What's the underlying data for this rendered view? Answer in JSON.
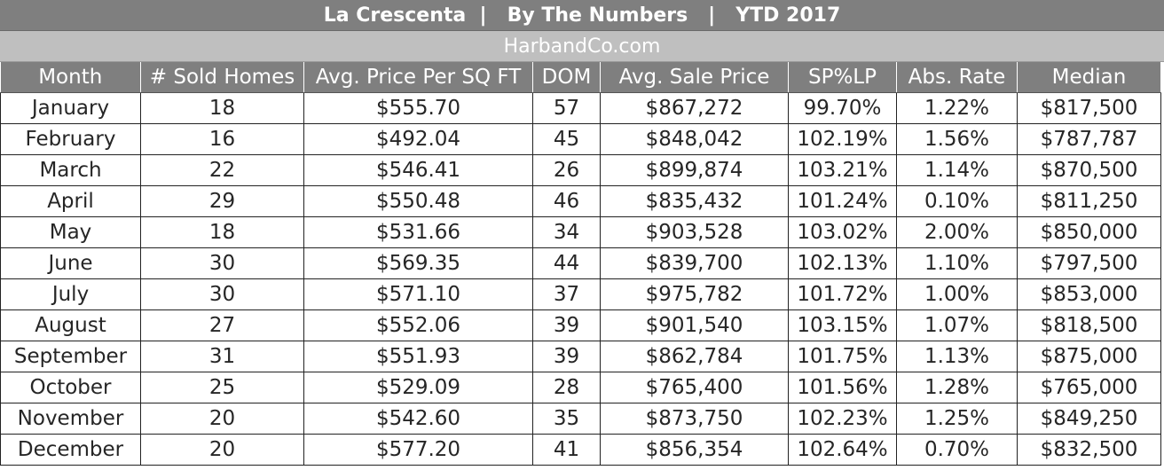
{
  "header": {
    "title": "La Crescenta  |   By The Numbers   |   YTD 2017",
    "subtitle": "HarbandCo.com"
  },
  "table": {
    "columns": [
      "Month",
      "# Sold Homes",
      "Avg. Price Per SQ FT",
      "DOM",
      "Avg. Sale Price",
      "SP%LP",
      "Abs. Rate",
      "Median"
    ],
    "rows": [
      [
        "January",
        "18",
        "$555.70",
        "57",
        "$867,272",
        "99.70%",
        "1.22%",
        "$817,500"
      ],
      [
        "February",
        "16",
        "$492.04",
        "45",
        "$848,042",
        "102.19%",
        "1.56%",
        "$787,787"
      ],
      [
        "March",
        "22",
        "$546.41",
        "26",
        "$899,874",
        "103.21%",
        "1.14%",
        "$870,500"
      ],
      [
        "April",
        "29",
        "$550.48",
        "46",
        "$835,432",
        "101.24%",
        "0.10%",
        "$811,250"
      ],
      [
        "May",
        "18",
        "$531.66",
        "34",
        "$903,528",
        "103.02%",
        "2.00%",
        "$850,000"
      ],
      [
        "June",
        "30",
        "$569.35",
        "44",
        "$839,700",
        "102.13%",
        "1.10%",
        "$797,500"
      ],
      [
        "July",
        "30",
        "$571.10",
        "37",
        "$975,782",
        "101.72%",
        "1.00%",
        "$853,000"
      ],
      [
        "August",
        "27",
        "$552.06",
        "39",
        "$901,540",
        "103.15%",
        "1.07%",
        "$818,500"
      ],
      [
        "September",
        "31",
        "$551.93",
        "39",
        "$862,784",
        "101.75%",
        "1.13%",
        "$875,000"
      ],
      [
        "October",
        "25",
        "$529.09",
        "28",
        "$765,400",
        "101.56%",
        "1.28%",
        "$765,000"
      ],
      [
        "November",
        "20",
        "$542.60",
        "35",
        "$873,750",
        "102.23%",
        "1.25%",
        "$849,250"
      ],
      [
        "December",
        "20",
        "$577.20",
        "41",
        "$856,354",
        "102.64%",
        "0.70%",
        "$832,500"
      ]
    ]
  }
}
